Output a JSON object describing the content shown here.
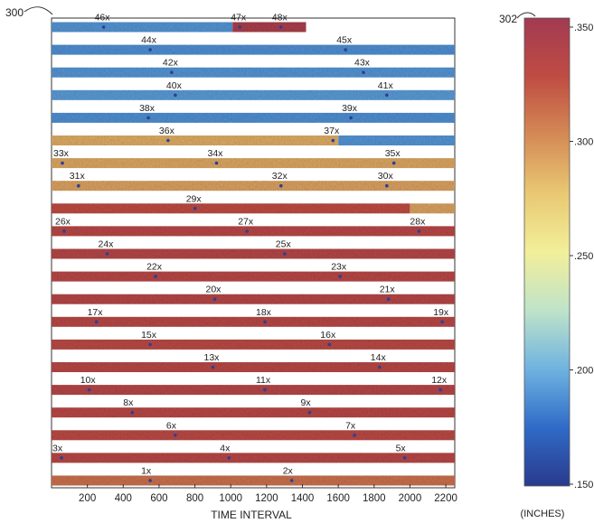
{
  "chart_data": {
    "type": "heatmap",
    "figure_ref": "300",
    "colorbar_ref": "302",
    "xlabel": "TIME INTERVAL",
    "xlim": [
      0,
      2250
    ],
    "xticks": [
      200,
      400,
      600,
      800,
      1000,
      1200,
      1400,
      1600,
      1800,
      2000,
      2200
    ],
    "colorbar": {
      "unit_label": "(INCHES)",
      "range": [
        0.15,
        0.35
      ],
      "ticks": [
        ".150",
        ".200",
        ".250",
        ".300",
        ".350"
      ],
      "colormap": [
        "#2a3a8e",
        "#2f6bc7",
        "#6fb3e0",
        "#bfe3c9",
        "#f2ef9a",
        "#e9c873",
        "#d48a55",
        "#bf4c43",
        "#a23a52"
      ]
    },
    "strips": [
      {
        "row": 1,
        "value": 0.337,
        "labels": [
          {
            "text": "46x",
            "x": 240
          },
          {
            "text": "47x",
            "x": 1000
          },
          {
            "text": "48x",
            "x": 1230
          }
        ],
        "end": 1420,
        "segments": [
          [
            0,
            1010,
            0.19
          ],
          [
            1010,
            1420,
            0.342
          ]
        ]
      },
      {
        "row": 2,
        "value": 0.19,
        "labels": [
          {
            "text": "44x",
            "x": 500
          },
          {
            "text": "45x",
            "x": 1590
          }
        ],
        "segments": [
          [
            0,
            2250,
            0.188
          ]
        ]
      },
      {
        "row": 3,
        "value": 0.19,
        "labels": [
          {
            "text": "42x",
            "x": 620
          },
          {
            "text": "43x",
            "x": 1690
          }
        ],
        "segments": [
          [
            0,
            2250,
            0.19
          ]
        ]
      },
      {
        "row": 4,
        "value": 0.19,
        "labels": [
          {
            "text": "40x",
            "x": 640
          },
          {
            "text": "41x",
            "x": 1820
          }
        ],
        "segments": [
          [
            0,
            2250,
            0.192
          ]
        ]
      },
      {
        "row": 5,
        "value": 0.19,
        "labels": [
          {
            "text": "38x",
            "x": 490
          },
          {
            "text": "39x",
            "x": 1620
          }
        ],
        "segments": [
          [
            0,
            2250,
            0.188
          ]
        ]
      },
      {
        "row": 6,
        "value": 0.29,
        "labels": [
          {
            "text": "36x",
            "x": 600
          },
          {
            "text": "37x",
            "x": 1520
          }
        ],
        "segments": [
          [
            0,
            1600,
            0.286
          ],
          [
            1600,
            2250,
            0.19
          ]
        ]
      },
      {
        "row": 7,
        "value": 0.29,
        "labels": [
          {
            "text": "33x",
            "x": 10
          },
          {
            "text": "34x",
            "x": 870
          },
          {
            "text": "35x",
            "x": 1860
          }
        ],
        "segments": [
          [
            0,
            2250,
            0.288
          ]
        ]
      },
      {
        "row": 8,
        "value": 0.29,
        "labels": [
          {
            "text": "31x",
            "x": 100
          },
          {
            "text": "32x",
            "x": 1230
          },
          {
            "text": "30x",
            "x": 1820
          }
        ],
        "segments": [
          [
            0,
            2250,
            0.29
          ]
        ]
      },
      {
        "row": 9,
        "value": 0.33,
        "labels": [
          {
            "text": "29x",
            "x": 750
          }
        ],
        "segments": [
          [
            0,
            2000,
            0.325
          ],
          [
            2000,
            2250,
            0.29
          ]
        ]
      },
      {
        "row": 10,
        "value": 0.33,
        "labels": [
          {
            "text": "26x",
            "x": 20
          },
          {
            "text": "27x",
            "x": 1040
          },
          {
            "text": "28x",
            "x": 2000
          }
        ],
        "segments": [
          [
            0,
            2250,
            0.33
          ]
        ]
      },
      {
        "row": 11,
        "value": 0.33,
        "labels": [
          {
            "text": "24x",
            "x": 260
          },
          {
            "text": "25x",
            "x": 1250
          }
        ],
        "segments": [
          [
            0,
            2250,
            0.332
          ]
        ]
      },
      {
        "row": 12,
        "value": 0.33,
        "labels": [
          {
            "text": "22x",
            "x": 530
          },
          {
            "text": "23x",
            "x": 1560
          }
        ],
        "segments": [
          [
            0,
            2250,
            0.33
          ]
        ]
      },
      {
        "row": 13,
        "value": 0.33,
        "labels": [
          {
            "text": "20x",
            "x": 860
          },
          {
            "text": "21x",
            "x": 1830
          }
        ],
        "segments": [
          [
            0,
            2250,
            0.332
          ]
        ]
      },
      {
        "row": 14,
        "value": 0.33,
        "labels": [
          {
            "text": "17x",
            "x": 200
          },
          {
            "text": "18x",
            "x": 1140
          },
          {
            "text": "19x",
            "x": 2130
          }
        ],
        "segments": [
          [
            0,
            2250,
            0.33
          ]
        ]
      },
      {
        "row": 15,
        "value": 0.33,
        "labels": [
          {
            "text": "15x",
            "x": 500
          },
          {
            "text": "16x",
            "x": 1500
          }
        ],
        "segments": [
          [
            0,
            2250,
            0.328
          ]
        ]
      },
      {
        "row": 16,
        "value": 0.33,
        "labels": [
          {
            "text": "13x",
            "x": 850
          },
          {
            "text": "14x",
            "x": 1780
          }
        ],
        "segments": [
          [
            0,
            2250,
            0.33
          ]
        ]
      },
      {
        "row": 17,
        "value": 0.33,
        "labels": [
          {
            "text": "10x",
            "x": 160
          },
          {
            "text": "11x",
            "x": 1140
          },
          {
            "text": "12x",
            "x": 2120
          }
        ],
        "segments": [
          [
            0,
            2250,
            0.332
          ]
        ]
      },
      {
        "row": 18,
        "value": 0.33,
        "labels": [
          {
            "text": "8x",
            "x": 400
          },
          {
            "text": "9x",
            "x": 1390
          }
        ],
        "segments": [
          [
            0,
            2250,
            0.33
          ]
        ]
      },
      {
        "row": 19,
        "value": 0.33,
        "labels": [
          {
            "text": "6x",
            "x": 640
          },
          {
            "text": "7x",
            "x": 1640
          }
        ],
        "segments": [
          [
            0,
            2250,
            0.328
          ]
        ]
      },
      {
        "row": 20,
        "value": 0.33,
        "labels": [
          {
            "text": "3x",
            "x": 5
          },
          {
            "text": "4x",
            "x": 940
          },
          {
            "text": "5x",
            "x": 1920
          }
        ],
        "segments": [
          [
            0,
            2250,
            0.33
          ]
        ]
      },
      {
        "row": 21,
        "value": 0.31,
        "labels": [
          {
            "text": "1x",
            "x": 500
          },
          {
            "text": "2x",
            "x": 1290
          }
        ],
        "segments": [
          [
            0,
            2250,
            0.31
          ]
        ]
      }
    ]
  }
}
